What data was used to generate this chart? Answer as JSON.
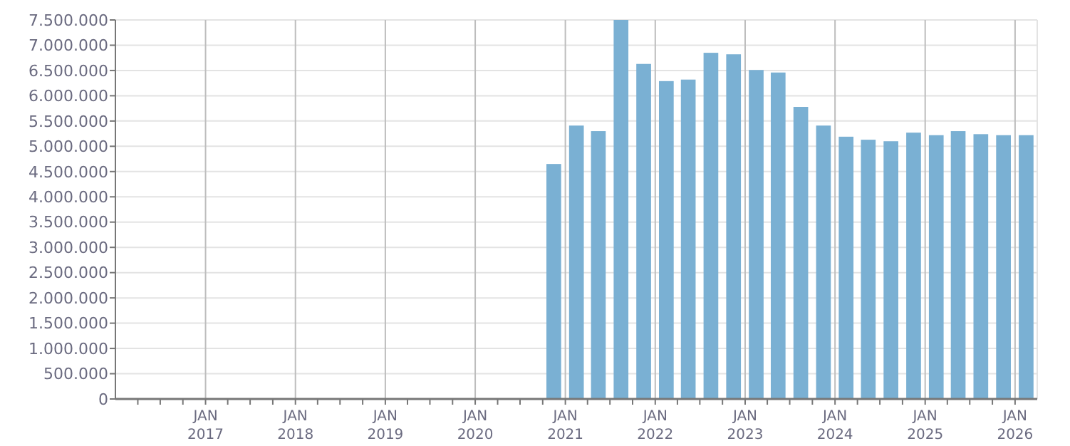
{
  "chart_data": {
    "type": "bar",
    "x": [
      "2020-11-15",
      "2021-02-15",
      "2021-05-15",
      "2021-08-15",
      "2021-11-15",
      "2022-02-15",
      "2022-05-15",
      "2022-08-15",
      "2022-11-15",
      "2023-02-15",
      "2023-05-15",
      "2023-08-15",
      "2023-11-15",
      "2024-02-15",
      "2024-05-15",
      "2024-08-15",
      "2024-11-15",
      "2025-02-15",
      "2025-05-15",
      "2025-08-15",
      "2025-11-15",
      "2026-02-15"
    ],
    "values": [
      4650000,
      5410000,
      5300000,
      7500000,
      6630000,
      6290000,
      6320000,
      6850000,
      6820000,
      6510000,
      6460000,
      5780000,
      5410000,
      5190000,
      5130000,
      5100000,
      5270000,
      5220000,
      5300000,
      5240000,
      5220000,
      5220000
    ],
    "color": "#7ab0d3",
    "xlim": [
      "2016-01-01",
      "2026-04-01"
    ],
    "xticks": [
      {
        "value": "2016-04-01",
        "label": null
      },
      {
        "value": "2016-07-01",
        "label": null
      },
      {
        "value": "2016-10-01",
        "label": null
      },
      {
        "value": "2017-01-01",
        "label": "JAN 2017"
      },
      {
        "value": "2017-04-01",
        "label": null
      },
      {
        "value": "2017-07-01",
        "label": null
      },
      {
        "value": "2017-10-01",
        "label": null
      },
      {
        "value": "2018-01-01",
        "label": "JAN 2018"
      },
      {
        "value": "2018-04-01",
        "label": null
      },
      {
        "value": "2018-07-01",
        "label": null
      },
      {
        "value": "2018-10-01",
        "label": null
      },
      {
        "value": "2019-01-01",
        "label": "JAN 2019"
      },
      {
        "value": "2019-04-01",
        "label": null
      },
      {
        "value": "2019-07-01",
        "label": null
      },
      {
        "value": "2019-10-01",
        "label": null
      },
      {
        "value": "2020-01-01",
        "label": "JAN 2020"
      },
      {
        "value": "2020-04-01",
        "label": null
      },
      {
        "value": "2020-07-01",
        "label": null
      },
      {
        "value": "2020-10-01",
        "label": null
      },
      {
        "value": "2021-01-01",
        "label": "JAN 2021"
      },
      {
        "value": "2021-04-01",
        "label": null
      },
      {
        "value": "2021-07-01",
        "label": null
      },
      {
        "value": "2021-10-01",
        "label": null
      },
      {
        "value": "2022-01-01",
        "label": "JAN 2022"
      },
      {
        "value": "2022-04-01",
        "label": null
      },
      {
        "value": "2022-07-01",
        "label": null
      },
      {
        "value": "2022-10-01",
        "label": null
      },
      {
        "value": "2023-01-01",
        "label": "JAN 2023"
      },
      {
        "value": "2023-04-01",
        "label": null
      },
      {
        "value": "2023-07-01",
        "label": null
      },
      {
        "value": "2023-10-01",
        "label": null
      },
      {
        "value": "2024-01-01",
        "label": "JAN 2024"
      },
      {
        "value": "2024-04-01",
        "label": null
      },
      {
        "value": "2024-07-01",
        "label": null
      },
      {
        "value": "2024-10-01",
        "label": null
      },
      {
        "value": "2025-01-01",
        "label": "JAN 2025"
      },
      {
        "value": "2025-04-01",
        "label": null
      },
      {
        "value": "2025-07-01",
        "label": null
      },
      {
        "value": "2025-10-01",
        "label": null
      },
      {
        "value": "2026-01-01",
        "label": "JAN 2026"
      }
    ],
    "ylim": [
      0,
      7500000
    ],
    "yticks": [
      {
        "value": 0,
        "label": "0"
      },
      {
        "value": 500000,
        "label": "500.000"
      },
      {
        "value": 1000000,
        "label": "1.000.000"
      },
      {
        "value": 1500000,
        "label": "1.500.000"
      },
      {
        "value": 2000000,
        "label": "2.000.000"
      },
      {
        "value": 2500000,
        "label": "2.500.000"
      },
      {
        "value": 3000000,
        "label": "3.000.000"
      },
      {
        "value": 3500000,
        "label": "3.500.000"
      },
      {
        "value": 4000000,
        "label": "4.000.000"
      },
      {
        "value": 4500000,
        "label": "4.500.000"
      },
      {
        "value": 5000000,
        "label": "5.000.000"
      },
      {
        "value": 5500000,
        "label": "5.500.000"
      },
      {
        "value": 6000000,
        "label": "6.000.000"
      },
      {
        "value": 6500000,
        "label": "6.500.000"
      },
      {
        "value": 7000000,
        "label": "7.000.000"
      },
      {
        "value": 7500000,
        "label": "7.500.000"
      }
    ],
    "grid": true
  }
}
